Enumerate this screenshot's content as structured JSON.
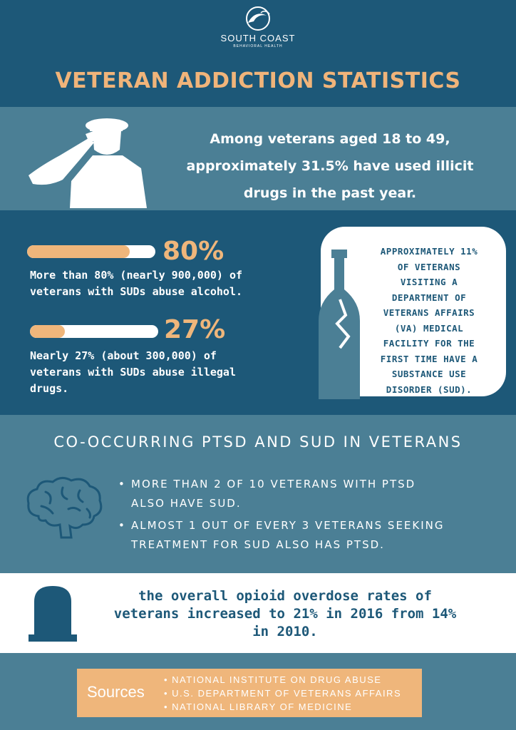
{
  "brand": {
    "name": "SOUTH COAST",
    "subtitle": "BEHAVIORAL HEALTH"
  },
  "title": "VETERAN ADDICTION STATISTICS",
  "headline": {
    "line1": "Among veterans aged 18 to 49,",
    "line2": "approximately 31.5% have used illicit",
    "line3": "drugs in the past year."
  },
  "stats": [
    {
      "percent_label": "80%",
      "fill_fraction": 0.8,
      "line1": "More than 80% (nearly 900,000) of",
      "line2": "veterans with SUDs abuse alcohol.",
      "line3": ""
    },
    {
      "percent_label": "27%",
      "fill_fraction": 0.27,
      "line1": "Nearly 27% (about 300,000) of",
      "line2": "veterans with SUDs abuse illegal",
      "line3": "drugs."
    }
  ],
  "card": {
    "lines": [
      "APPROXIMATELY 11%",
      "OF VETERANS",
      "VISITING A",
      "DEPARTMENT OF",
      "VETERANS AFFAIRS",
      "(VA) MEDICAL",
      "FACILITY FOR THE",
      "FIRST TIME HAVE A",
      "SUBSTANCE USE",
      "DISORDER (SUD)."
    ]
  },
  "ptsd": {
    "title": "CO-OCCURRING PTSD AND SUD IN VETERANS",
    "bullets": [
      {
        "line1": "MORE THAN 2 OF 10 VETERANS WITH PTSD",
        "line2": "ALSO HAVE SUD."
      },
      {
        "line1": "ALMOST 1 OUT OF EVERY 3 VETERANS SEEKING",
        "line2": "TREATMENT FOR SUD ALSO HAS PTSD."
      }
    ]
  },
  "opioid": {
    "line1": "the overall opioid overdose rates of",
    "line2": "veterans increased to 21% in 2016 from 14%",
    "line3": "in 2010."
  },
  "sources": {
    "label": "Sources",
    "items": [
      "NATIONAL INSTITUTE ON DRUG ABUSE",
      "U.S. DEPARTMENT OF VETERANS AFFAIRS",
      "NATIONAL LIBRARY OF MEDICINE"
    ]
  },
  "colors": {
    "navy": "#1d5878",
    "steel_blue": "#4b7f95",
    "accent_orange": "#efb67b",
    "white": "#ffffff"
  },
  "icons": [
    "wave-logo-icon",
    "saluting-soldier-icon",
    "broken-bottle-icon",
    "brain-icon",
    "tombstone-icon"
  ]
}
